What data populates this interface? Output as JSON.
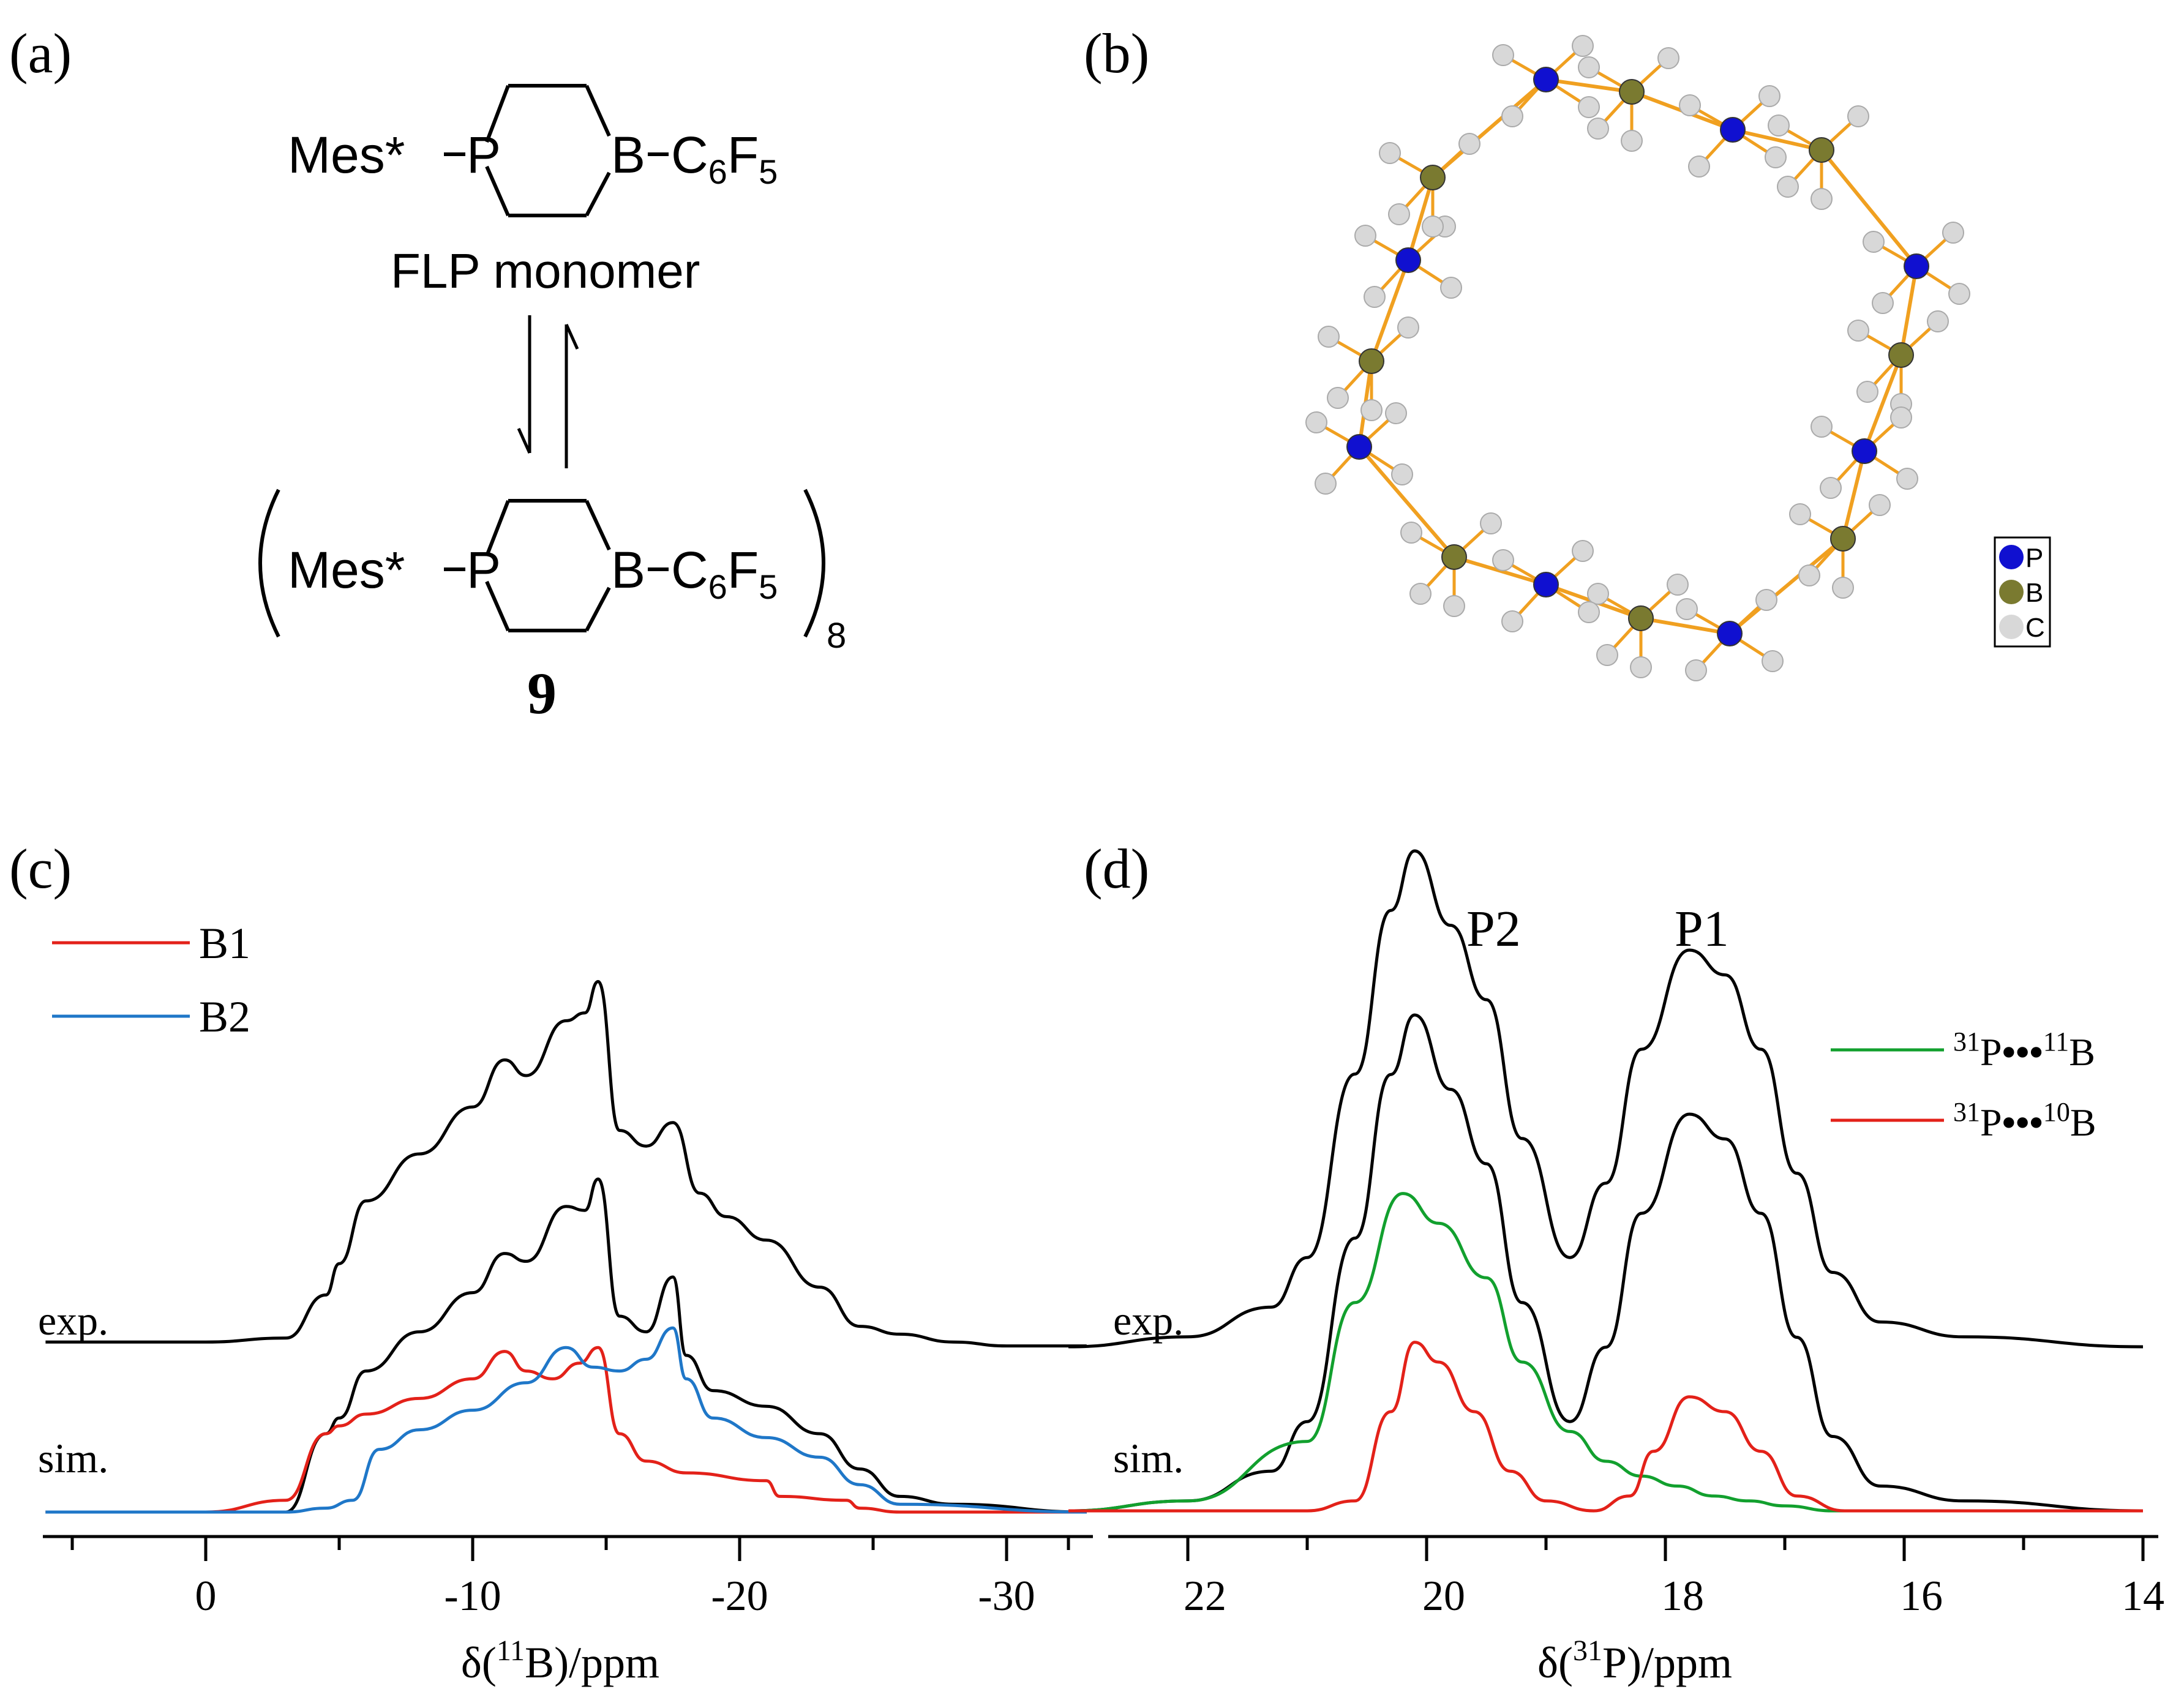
{
  "panels": {
    "a": {
      "label": "(a)",
      "monomer": {
        "left": "Mes*",
        "p": "P",
        "b": "B",
        "sub": "C",
        "sub1": "6",
        "sub2": "F",
        "sub3": "5"
      },
      "monomer_caption": "FLP monomer",
      "oligomer_subscript": "8",
      "compound_number": "9"
    },
    "b": {
      "label": "(b)",
      "legend": [
        "P",
        "B",
        "C"
      ],
      "colors": {
        "P": "#1010d0",
        "B": "#7a7a30",
        "C": "#d8d8d8",
        "bond": "#f0a020"
      }
    },
    "c": {
      "label": "(c)",
      "legend": [
        {
          "name": "B1",
          "color": "#e32119"
        },
        {
          "name": "B2",
          "color": "#1f77c8"
        }
      ],
      "exp_label": "exp.",
      "sim_label": "sim.",
      "xlabel_prefix": "δ(",
      "xlabel_sup": "11",
      "xlabel_suffix": "B)/ppm",
      "ticks": [
        "0",
        "-10",
        "-20",
        "-30"
      ]
    },
    "d": {
      "label": "(d)",
      "peak_labels": [
        "P2",
        "P1"
      ],
      "legend": [
        {
          "sup1": "31",
          "mid": "P",
          "dots": "•••",
          "sup2": "11",
          "end": "B",
          "color": "#12a02e"
        },
        {
          "sup1": "31",
          "mid": "P",
          "dots": "•••",
          "sup2": "10",
          "end": "B",
          "color": "#e32119"
        }
      ],
      "exp_label": "exp.",
      "sim_label": "sim.",
      "xlabel_prefix": "δ(",
      "xlabel_sup": "31",
      "xlabel_suffix": "P)/ppm",
      "ticks": [
        "22",
        "20",
        "18",
        "16",
        "14"
      ]
    }
  },
  "chart_data": [
    {
      "type": "line",
      "panel": "c",
      "xlabel": "δ(11B)/ppm",
      "xlim": [
        6,
        -33
      ],
      "series": [
        {
          "name": "exp.",
          "color": "#000000",
          "x": [
            6,
            2,
            0,
            -3,
            -4.5,
            -5,
            -6,
            -8,
            -10,
            -11.2,
            -12,
            -13.5,
            -14.2,
            -14.7,
            -15.5,
            -16.5,
            -17.5,
            -18.5,
            -19.5,
            -21,
            -23,
            -24.5,
            -26,
            -28,
            -30,
            -33
          ],
          "y": [
            0.02,
            0.02,
            0.02,
            0.03,
            0.14,
            0.22,
            0.38,
            0.5,
            0.62,
            0.74,
            0.7,
            0.84,
            0.86,
            0.94,
            0.56,
            0.52,
            0.58,
            0.4,
            0.34,
            0.28,
            0.16,
            0.06,
            0.04,
            0.02,
            0.01,
            0.01
          ]
        },
        {
          "name": "sim.",
          "color": "#000000",
          "x": [
            6,
            2,
            0,
            -3,
            -4.5,
            -5,
            -6,
            -8,
            -10,
            -11.2,
            -12,
            -13.5,
            -14.2,
            -14.7,
            -15.5,
            -16.5,
            -17.5,
            -18,
            -19,
            -21,
            -23,
            -24.5,
            -26,
            -28,
            -33
          ],
          "y": [
            0,
            0,
            0,
            0,
            0.2,
            0.24,
            0.36,
            0.46,
            0.56,
            0.66,
            0.64,
            0.78,
            0.77,
            0.85,
            0.5,
            0.46,
            0.6,
            0.4,
            0.31,
            0.27,
            0.2,
            0.11,
            0.04,
            0.02,
            0
          ]
        },
        {
          "name": "B1",
          "color": "#e32119",
          "x": [
            6,
            3,
            0,
            -3,
            -4.5,
            -5,
            -6,
            -8,
            -10,
            -11.2,
            -12,
            -13,
            -14,
            -14.7,
            -15.5,
            -16.5,
            -18,
            -21,
            -21.5,
            -24,
            -24.5,
            -26,
            -33
          ],
          "y": [
            0,
            0,
            0,
            0.03,
            0.2,
            0.22,
            0.25,
            0.29,
            0.34,
            0.41,
            0.36,
            0.34,
            0.38,
            0.42,
            0.2,
            0.13,
            0.1,
            0.08,
            0.04,
            0.03,
            0.01,
            0,
            0
          ]
        },
        {
          "name": "B2",
          "color": "#1f77c8",
          "x": [
            6,
            3,
            0,
            -3,
            -4.5,
            -5.5,
            -6.5,
            -8,
            -10,
            -12,
            -13.5,
            -14.5,
            -15.5,
            -16.5,
            -17.5,
            -18,
            -19,
            -21,
            -23,
            -24.5,
            -26,
            -33
          ],
          "y": [
            0,
            0,
            0,
            0,
            0.01,
            0.03,
            0.16,
            0.21,
            0.26,
            0.33,
            0.42,
            0.37,
            0.36,
            0.39,
            0.47,
            0.34,
            0.24,
            0.19,
            0.14,
            0.07,
            0.02,
            0
          ]
        }
      ]
    },
    {
      "type": "line",
      "panel": "d",
      "xlabel": "δ(31P)/ppm",
      "xlim": [
        23,
        14
      ],
      "series": [
        {
          "name": "exp.",
          "color": "#000000",
          "x": [
            23,
            22,
            21.3,
            21,
            20.6,
            20.3,
            20.1,
            19.8,
            19.5,
            19.2,
            18.8,
            18.5,
            18.2,
            17.8,
            17.5,
            17.2,
            16.9,
            16.6,
            16.2,
            15.5,
            14
          ],
          "y": [
            0.0,
            0.02,
            0.08,
            0.18,
            0.55,
            0.88,
            1.0,
            0.85,
            0.7,
            0.42,
            0.18,
            0.33,
            0.6,
            0.8,
            0.75,
            0.6,
            0.35,
            0.15,
            0.05,
            0.02,
            0.0
          ]
        },
        {
          "name": "sim.",
          "color": "#000000",
          "x": [
            23,
            22,
            21.3,
            21,
            20.6,
            20.3,
            20.1,
            19.8,
            19.5,
            19.2,
            18.8,
            18.5,
            18.2,
            17.8,
            17.5,
            17.2,
            16.9,
            16.6,
            16.2,
            15.5,
            14
          ],
          "y": [
            0.0,
            0.02,
            0.08,
            0.18,
            0.55,
            0.88,
            1.0,
            0.85,
            0.7,
            0.42,
            0.18,
            0.33,
            0.6,
            0.8,
            0.75,
            0.6,
            0.35,
            0.15,
            0.05,
            0.02,
            0.0
          ]
        },
        {
          "name": "31P•••11B",
          "color": "#12a02e",
          "x": [
            23,
            22,
            21,
            20.6,
            20.2,
            19.9,
            19.5,
            19.2,
            18.8,
            18.5,
            18.2,
            17.9,
            17.6,
            17.3,
            17,
            16.6,
            16,
            15,
            14
          ],
          "y": [
            0.0,
            0.02,
            0.14,
            0.42,
            0.64,
            0.58,
            0.47,
            0.3,
            0.16,
            0.1,
            0.07,
            0.05,
            0.03,
            0.02,
            0.01,
            0.0,
            0.0,
            0.0,
            0.0
          ]
        },
        {
          "name": "31P•••10B",
          "color": "#e32119",
          "x": [
            23,
            21,
            20.6,
            20.3,
            20.1,
            19.9,
            19.6,
            19.3,
            19,
            18.6,
            18.3,
            18.1,
            17.8,
            17.5,
            17.2,
            16.9,
            16.5,
            14
          ],
          "y": [
            0,
            0,
            0.02,
            0.2,
            0.34,
            0.3,
            0.2,
            0.08,
            0.02,
            0.0,
            0.03,
            0.12,
            0.23,
            0.2,
            0.12,
            0.03,
            0.0,
            0.0
          ]
        }
      ]
    }
  ]
}
